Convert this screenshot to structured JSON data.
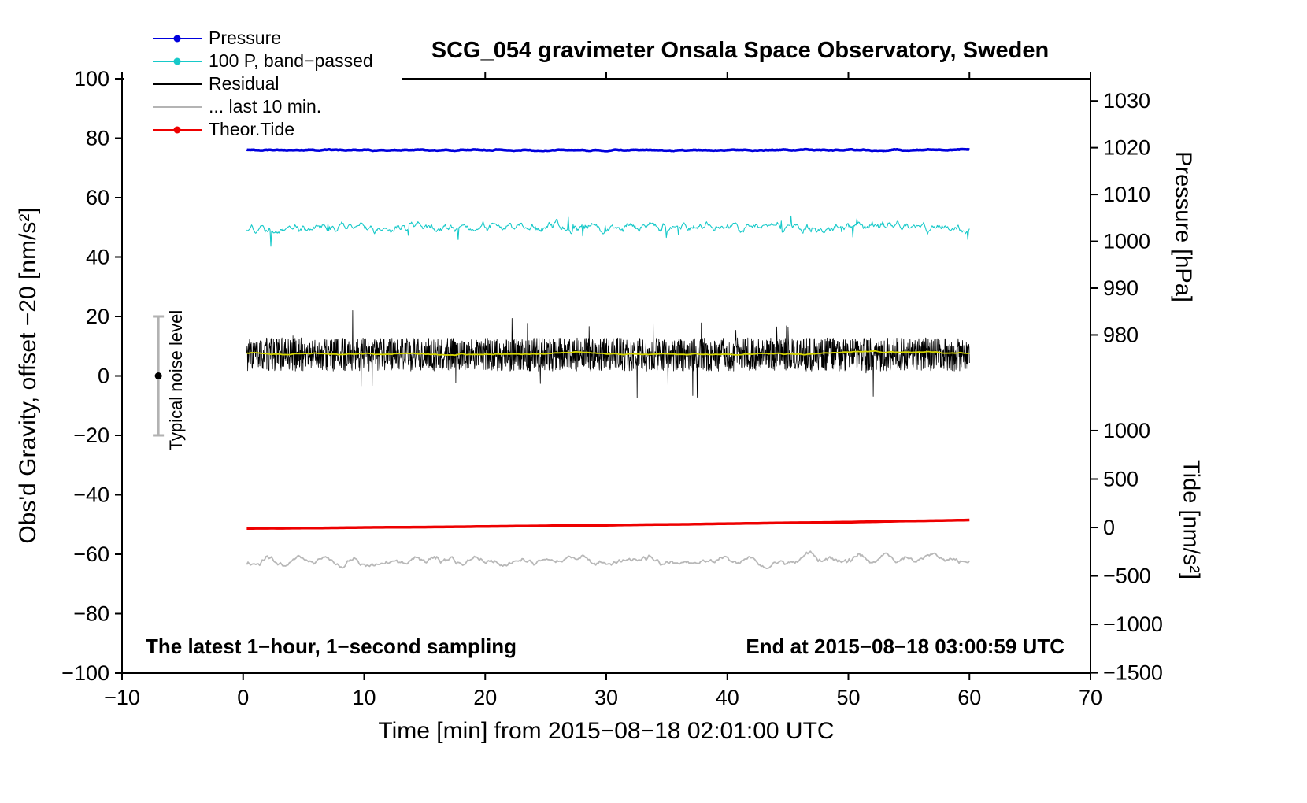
{
  "chart_data": {
    "type": "line",
    "title": "SCG_054 gravimeter Onsala Space Observatory, Sweden",
    "xlabel": "Time [min] from 2015−08−18 02:01:00 UTC",
    "ylabel": "Obs'd Gravity, offset −20 [nm/s²]",
    "y2label_pressure": "Pressure [hPa]",
    "y2label_tide": "Tide [nm/s²]",
    "xlim": [
      -10,
      70
    ],
    "ylim": [
      -100,
      100
    ],
    "x_ticks": [
      -10,
      0,
      10,
      20,
      30,
      40,
      50,
      60,
      70
    ],
    "y_ticks": [
      -100,
      -80,
      -60,
      -40,
      -20,
      0,
      20,
      40,
      60,
      80,
      100
    ],
    "grid": false,
    "legend_position": "top-left",
    "pressure_axis": {
      "ticks": [
        1030,
        1020,
        1010,
        1000,
        990,
        980
      ],
      "hpa_at_left76": 1019.5,
      "left_units_per_hpa": 1.575
    },
    "tide_axis": {
      "ticks": [
        1000,
        500,
        0,
        -500,
        -1000,
        -1500
      ],
      "tide0_left": -51,
      "left_units_per_500": 16.3
    },
    "legend": [
      {
        "label": "Pressure",
        "color": "#0000dd",
        "dot": true
      },
      {
        "label": "100 P, band−passed",
        "color": "#17c9c9",
        "dot": true
      },
      {
        "label": "Residual",
        "color": "#000000",
        "dot": false
      },
      {
        "label": "... last 10 min.",
        "color": "#b4b4b4",
        "dot": false
      },
      {
        "label": "Theor.Tide",
        "color": "#ee0000",
        "dot": true
      }
    ],
    "notes": {
      "sampling": "The latest 1−hour, 1−second sampling",
      "end_time": "End at 2015−08−18 03:00:59 UTC"
    },
    "noise_bar": {
      "label": "Typical noise level",
      "x": -7,
      "y": 0,
      "ymin": -20,
      "ymax": 20,
      "color": "#b2b2b2",
      "dot_color": "#000000"
    },
    "series": [
      {
        "name": "pressure",
        "color": "#0000dd",
        "width": 3.5,
        "x0": 0.3,
        "x1": 60,
        "base": 76,
        "amp": 0.35,
        "smooth": 5,
        "n": 900,
        "seed": 11,
        "summary": "Air pressure ~1019.5 hPa, essentially constant over the hour"
      },
      {
        "name": "pressure-bandpassed",
        "color": "#17c9c9",
        "width": 1.1,
        "x0": 0.3,
        "x1": 60,
        "base": 50,
        "amp": 2.8,
        "smooth": 2,
        "n": 900,
        "seed": 22,
        "spikes": true,
        "summary": "100× band-passed pressure centered near 50, fluctuations about ±5"
      },
      {
        "name": "residual",
        "color": "#000000",
        "width": 0.8,
        "x0": 0.3,
        "x1": 60,
        "base": 7.2,
        "amp": 5.6,
        "smooth": 1,
        "n": 2300,
        "seed": 33,
        "spikes": true,
        "summary": "Gravity residual, mean ~7 nm/s², dense noise band about ±6"
      },
      {
        "name": "residual-smoothed",
        "color": "#d4d400",
        "width": 1.8,
        "x0": 0.3,
        "x1": 60,
        "base": 7.4,
        "amp": 1.0,
        "smooth": 25,
        "n": 300,
        "seed": 44,
        "summary": "Smoothed residual running through the noise band near 7"
      },
      {
        "name": "theoretical-tide",
        "color": "#ee0000",
        "width": 3.5,
        "x0": 0.3,
        "x1": 60,
        "base": -51.3,
        "trend": 1.5,
        "curve": 1.3,
        "amp": 0.06,
        "smooth": 8,
        "n": 240,
        "seed": 55,
        "summary": "Theoretical tide, slowly rising from about −75 to +70 nm/s² on tide axis"
      },
      {
        "name": "residual-last10min",
        "color": "#b8b8b8",
        "width": 1.8,
        "x0": 0.3,
        "x1": 60,
        "base": -62,
        "amp": 3.0,
        "smooth": 4,
        "n": 560,
        "seed": 66,
        "summary": "Residual of the last 10 minutes (offset), oscillating about ±3"
      }
    ]
  }
}
